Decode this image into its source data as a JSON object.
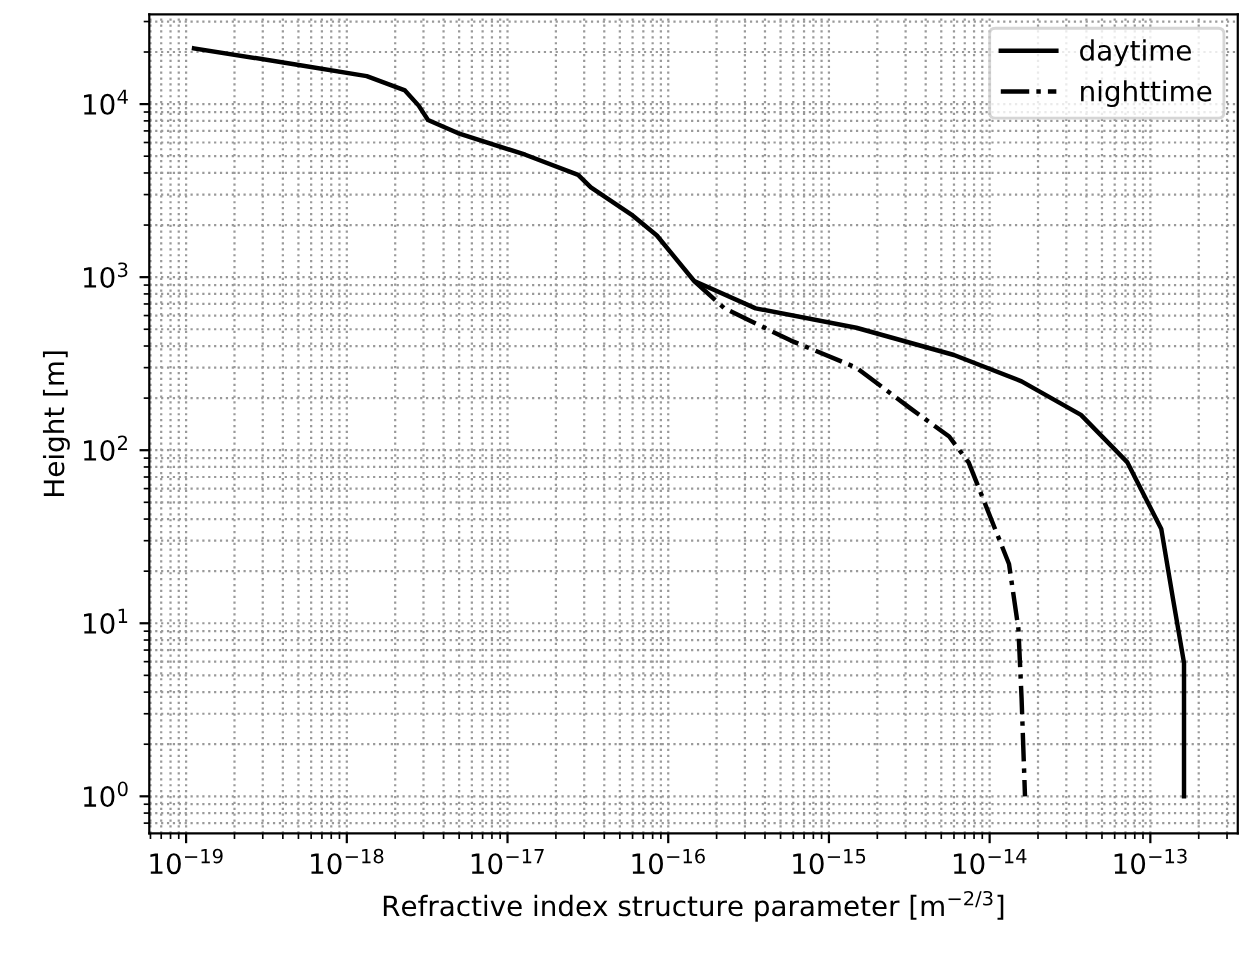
{
  "chart_data": {
    "type": "line",
    "xlabel": "Refractive index structure parameter [m$^{−2/3}$]",
    "ylabel": "Height [m]",
    "log": "xy",
    "grid": true,
    "legend": "top right",
    "marker": "none",
    "xlim": [
      5.9e-20,
      3.5e-13
    ],
    "ylim": [
      0.61,
      33000
    ],
    "xticks": [
      {
        "value": 1e-19,
        "label": "10$^{−19}$"
      },
      {
        "value": 1e-18,
        "label": "10$^{−18}$"
      },
      {
        "value": 1e-17,
        "label": "10$^{−17}$"
      },
      {
        "value": 1e-16,
        "label": "10$^{−16}$"
      },
      {
        "value": 1e-15,
        "label": "10$^{−15}$"
      },
      {
        "value": 1e-14,
        "label": "10$^{−14}$"
      },
      {
        "value": 1e-13,
        "label": "10$^{−13}$"
      }
    ],
    "yticks": [
      {
        "value": 1,
        "label": "10$^{0}$"
      },
      {
        "value": 10,
        "label": "10$^{1}$"
      },
      {
        "value": 100,
        "label": "10$^{2}$"
      },
      {
        "value": 1000,
        "label": "10$^{3}$"
      },
      {
        "value": 10000,
        "label": "10$^{4}$"
      }
    ],
    "series": [
      {
        "name": "daytime",
        "color": "#000000",
        "line_style": "solid",
        "x": [
          1.12e-19,
          4.7e-19,
          1.33e-18,
          2.3e-18,
          2.8e-18,
          3.2e-18,
          4.9e-18,
          1.29e-17,
          2.75e-17,
          3.3e-17,
          5.9e-17,
          8.5e-17,
          1.45e-16,
          3.5e-16,
          1.48e-15,
          6e-15,
          1.58e-14,
          3.7e-14,
          7.2e-14,
          1.17e-13,
          1.38e-13,
          1.62e-13,
          1.62e-13
        ],
        "values": [
          21000,
          17000,
          14500,
          12000,
          9800,
          8100,
          6800,
          5100,
          3900,
          3300,
          2300,
          1740,
          950,
          660,
          510,
          355,
          250,
          160,
          85,
          35,
          14,
          5.9,
          1
        ]
      },
      {
        "name": "nighttime",
        "color": "#000000",
        "line_style": "dashdot",
        "x": [
          1.45e-16,
          2.24e-16,
          5.8e-16,
          1.48e-15,
          3.2e-15,
          5.6e-15,
          7.4e-15,
          1.32e-14,
          1.51e-14,
          1.58e-14,
          1.66e-14
        ],
        "values": [
          950,
          660,
          430,
          300,
          175,
          120,
          85,
          22,
          9.3,
          3.7,
          1
        ]
      }
    ]
  }
}
